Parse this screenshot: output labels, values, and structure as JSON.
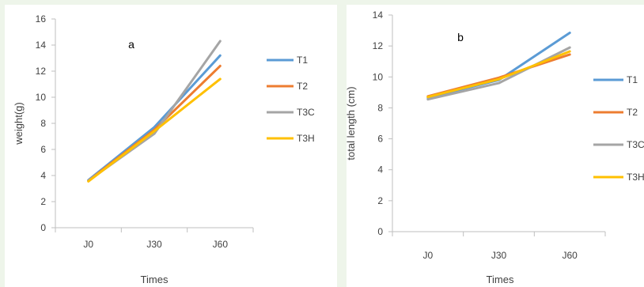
{
  "chart_data": [
    {
      "type": "line",
      "annotation": "a",
      "xlabel": "Times",
      "ylabel": "weight(g)",
      "categories": [
        "J0",
        "J30",
        "J60"
      ],
      "ylim": [
        0,
        16
      ],
      "yticks": [
        0,
        2,
        4,
        6,
        8,
        10,
        12,
        14,
        16
      ],
      "grid": false,
      "legend_position": "right",
      "series": [
        {
          "name": "T1",
          "color": "#5b9bd5",
          "values": [
            3.65,
            7.7,
            13.2
          ]
        },
        {
          "name": "T2",
          "color": "#ed7d31",
          "values": [
            3.6,
            7.5,
            12.4
          ]
        },
        {
          "name": "T3C",
          "color": "#a5a5a5",
          "values": [
            3.6,
            7.2,
            14.3
          ]
        },
        {
          "name": "T3H",
          "color": "#ffc000",
          "values": [
            3.55,
            7.4,
            11.4
          ]
        }
      ]
    },
    {
      "type": "line",
      "annotation": "b",
      "xlabel": "Times",
      "ylabel": "total length (cm)",
      "categories": [
        "J0",
        "J30",
        "J60"
      ],
      "ylim": [
        0,
        14
      ],
      "yticks": [
        0,
        2,
        4,
        6,
        8,
        10,
        12,
        14
      ],
      "grid": false,
      "legend_position": "right",
      "series": [
        {
          "name": "T1",
          "color": "#5b9bd5",
          "values": [
            8.65,
            9.8,
            12.85
          ]
        },
        {
          "name": "T2",
          "color": "#ed7d31",
          "values": [
            8.75,
            9.95,
            11.45
          ]
        },
        {
          "name": "T3C",
          "color": "#a5a5a5",
          "values": [
            8.55,
            9.6,
            11.9
          ]
        },
        {
          "name": "T3H",
          "color": "#ffc000",
          "values": [
            8.7,
            9.85,
            11.65
          ]
        }
      ]
    }
  ]
}
